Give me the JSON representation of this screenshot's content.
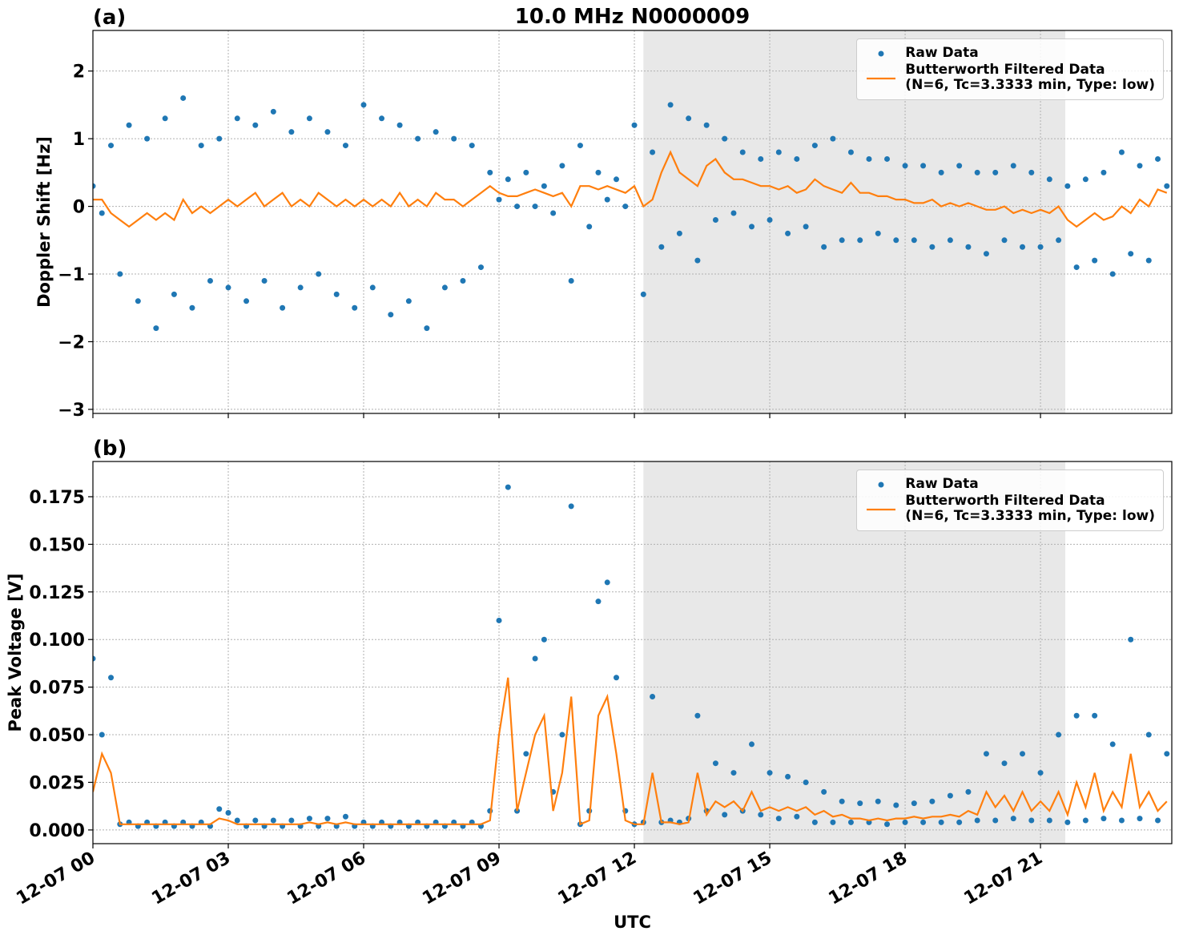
{
  "chart_data": [
    {
      "type": "scatter-line",
      "title": "10.0 MHz N0000009",
      "panel_label": "(a)",
      "y_label": "Doppler Shift [Hz]",
      "xlim": [
        0,
        23.91
      ],
      "xticks": [
        0,
        3,
        6,
        9,
        12,
        15,
        18,
        21
      ],
      "ylim": [
        -3.06,
        2.6
      ],
      "yticks": [
        {
          "value": -3,
          "label": "−3"
        },
        {
          "value": -2,
          "label": "−2"
        },
        {
          "value": -1,
          "label": "−1"
        },
        0,
        1,
        2
      ],
      "grid": true,
      "legend": "upper right",
      "shaded_span": [
        12.2,
        21.55
      ],
      "shade_color": "#e8e8e8",
      "x": [
        0,
        0.2,
        0.4,
        0.6,
        0.8,
        1,
        1.2,
        1.4,
        1.6,
        1.8,
        2,
        2.2,
        2.4,
        2.6,
        2.8,
        3,
        3.2,
        3.4,
        3.6,
        3.8,
        4,
        4.2,
        4.4,
        4.6,
        4.8,
        5,
        5.2,
        5.4,
        5.6,
        5.8,
        6,
        6.2,
        6.4,
        6.6,
        6.8,
        7,
        7.2,
        7.4,
        7.6,
        7.8,
        8,
        8.2,
        8.4,
        8.6,
        8.8,
        9,
        9.2,
        9.4,
        9.6,
        9.8,
        10,
        10.2,
        10.4,
        10.6,
        10.8,
        11,
        11.2,
        11.4,
        11.6,
        11.8,
        12,
        12.2,
        12.4,
        12.6,
        12.8,
        13,
        13.2,
        13.4,
        13.6,
        13.8,
        14,
        14.2,
        14.4,
        14.6,
        14.8,
        15,
        15.2,
        15.4,
        15.6,
        15.8,
        16,
        16.2,
        16.4,
        16.6,
        16.8,
        17,
        17.2,
        17.4,
        17.6,
        17.8,
        18,
        18.2,
        18.4,
        18.6,
        18.8,
        19,
        19.2,
        19.4,
        19.6,
        19.8,
        20,
        20.2,
        20.4,
        20.6,
        20.8,
        21,
        21.2,
        21.4,
        21.6,
        21.8,
        22,
        22.2,
        22.4,
        22.6,
        22.8,
        23,
        23.2,
        23.4,
        23.6,
        23.8
      ],
      "series": [
        {
          "name": "Raw Data",
          "color": "#1f77b4",
          "style": "points",
          "values": [
            0.3,
            -0.1,
            0.9,
            -1.0,
            1.2,
            -1.4,
            1.0,
            -1.8,
            1.3,
            -1.3,
            1.6,
            -1.5,
            0.9,
            -1.1,
            1.0,
            -1.2,
            1.3,
            -1.4,
            1.2,
            -1.1,
            1.4,
            -1.5,
            1.1,
            -1.2,
            1.3,
            -1.0,
            1.1,
            -1.3,
            0.9,
            -1.5,
            1.5,
            -1.2,
            1.3,
            -1.6,
            1.2,
            -1.4,
            1.0,
            -1.8,
            1.1,
            -1.2,
            1.0,
            -1.1,
            0.9,
            -0.9,
            0.5,
            0.1,
            0.4,
            0.0,
            0.5,
            0.0,
            0.3,
            -0.1,
            0.6,
            -1.1,
            0.9,
            -0.3,
            0.5,
            0.1,
            0.4,
            0.0,
            1.2,
            -1.3,
            0.8,
            -0.6,
            1.5,
            -0.4,
            1.3,
            -0.8,
            1.2,
            -0.2,
            1.0,
            -0.1,
            0.8,
            -0.3,
            0.7,
            -0.2,
            0.8,
            -0.4,
            0.7,
            -0.3,
            0.9,
            -0.6,
            1.0,
            -0.5,
            0.8,
            -0.5,
            0.7,
            -0.4,
            0.7,
            -0.5,
            0.6,
            -0.5,
            0.6,
            -0.6,
            0.5,
            -0.5,
            0.6,
            -0.6,
            0.5,
            -0.7,
            0.5,
            -0.5,
            0.6,
            -0.6,
            0.5,
            -0.6,
            0.4,
            -0.5,
            0.3,
            -0.9,
            0.4,
            -0.8,
            0.5,
            -1.0,
            0.8,
            -0.7,
            0.6,
            -0.8,
            0.7,
            0.3
          ]
        },
        {
          "name": "Butterworth Filtered Data\n(N=6, Tc=3.3333 min, Type: low)",
          "color": "#ff7f0e",
          "style": "line",
          "values": [
            0.1,
            0.1,
            -0.1,
            -0.2,
            -0.3,
            -0.2,
            -0.1,
            -0.2,
            -0.1,
            -0.2,
            0.1,
            -0.1,
            0.0,
            -0.1,
            0.0,
            0.1,
            0.0,
            0.1,
            0.2,
            0.0,
            0.1,
            0.2,
            0.0,
            0.1,
            0.0,
            0.2,
            0.1,
            0.0,
            0.1,
            0.0,
            0.1,
            0.0,
            0.1,
            0.0,
            0.2,
            0.0,
            0.1,
            0.0,
            0.2,
            0.1,
            0.1,
            0.0,
            0.1,
            0.2,
            0.3,
            0.2,
            0.15,
            0.15,
            0.2,
            0.25,
            0.2,
            0.15,
            0.2,
            0.0,
            0.3,
            0.3,
            0.25,
            0.3,
            0.25,
            0.2,
            0.3,
            0.0,
            0.1,
            0.5,
            0.8,
            0.5,
            0.4,
            0.3,
            0.6,
            0.7,
            0.5,
            0.4,
            0.4,
            0.35,
            0.3,
            0.3,
            0.25,
            0.3,
            0.2,
            0.25,
            0.4,
            0.3,
            0.25,
            0.2,
            0.35,
            0.2,
            0.2,
            0.15,
            0.15,
            0.1,
            0.1,
            0.05,
            0.05,
            0.1,
            0.0,
            0.05,
            0.0,
            0.05,
            0.0,
            -0.05,
            -0.05,
            0.0,
            -0.1,
            -0.05,
            -0.1,
            -0.05,
            -0.1,
            0.0,
            -0.2,
            -0.3,
            -0.2,
            -0.1,
            -0.2,
            -0.15,
            0.0,
            -0.1,
            0.1,
            0.0,
            0.25,
            0.2
          ]
        }
      ]
    },
    {
      "type": "scatter-line",
      "panel_label": "(b)",
      "y_label": "Peak Voltage [V]",
      "x_label": "UTC",
      "xlim": [
        0,
        23.91
      ],
      "xticks": [
        {
          "value": 0,
          "label": "12-07 00"
        },
        {
          "value": 3,
          "label": "12-07 03"
        },
        {
          "value": 6,
          "label": "12-07 06"
        },
        {
          "value": 9,
          "label": "12-07 09"
        },
        {
          "value": 12,
          "label": "12-07 12"
        },
        {
          "value": 15,
          "label": "12-07 15"
        },
        {
          "value": 18,
          "label": "12-07 18"
        },
        {
          "value": 21,
          "label": "12-07 21"
        }
      ],
      "ylim": [
        -0.0072,
        0.1935
      ],
      "yticks": [
        {
          "value": 0,
          "label": "0.000"
        },
        {
          "value": 0.025,
          "label": "0.025"
        },
        {
          "value": 0.05,
          "label": "0.050"
        },
        {
          "value": 0.075,
          "label": "0.075"
        },
        {
          "value": 0.1,
          "label": "0.100"
        },
        {
          "value": 0.125,
          "label": "0.125"
        },
        {
          "value": 0.15,
          "label": "0.150"
        },
        {
          "value": 0.175,
          "label": "0.175"
        }
      ],
      "grid": true,
      "legend": "upper right",
      "shaded_span": [
        12.2,
        21.55
      ],
      "shade_color": "#e8e8e8",
      "x": [
        0,
        0.2,
        0.4,
        0.6,
        0.8,
        1,
        1.2,
        1.4,
        1.6,
        1.8,
        2,
        2.2,
        2.4,
        2.6,
        2.8,
        3,
        3.2,
        3.4,
        3.6,
        3.8,
        4,
        4.2,
        4.4,
        4.6,
        4.8,
        5,
        5.2,
        5.4,
        5.6,
        5.8,
        6,
        6.2,
        6.4,
        6.6,
        6.8,
        7,
        7.2,
        7.4,
        7.6,
        7.8,
        8,
        8.2,
        8.4,
        8.6,
        8.8,
        9,
        9.2,
        9.4,
        9.6,
        9.8,
        10,
        10.2,
        10.4,
        10.6,
        10.8,
        11,
        11.2,
        11.4,
        11.6,
        11.8,
        12,
        12.2,
        12.4,
        12.6,
        12.8,
        13,
        13.2,
        13.4,
        13.6,
        13.8,
        14,
        14.2,
        14.4,
        14.6,
        14.8,
        15,
        15.2,
        15.4,
        15.6,
        15.8,
        16,
        16.2,
        16.4,
        16.6,
        16.8,
        17,
        17.2,
        17.4,
        17.6,
        17.8,
        18,
        18.2,
        18.4,
        18.6,
        18.8,
        19,
        19.2,
        19.4,
        19.6,
        19.8,
        20,
        20.2,
        20.4,
        20.6,
        20.8,
        21,
        21.2,
        21.4,
        21.6,
        21.8,
        22,
        22.2,
        22.4,
        22.6,
        22.8,
        23,
        23.2,
        23.4,
        23.6,
        23.8
      ],
      "series": [
        {
          "name": "Raw Data",
          "color": "#1f77b4",
          "style": "points",
          "values": [
            0.09,
            0.05,
            0.08,
            0.003,
            0.004,
            0.002,
            0.004,
            0.002,
            0.004,
            0.002,
            0.004,
            0.002,
            0.004,
            0.002,
            0.011,
            0.009,
            0.005,
            0.002,
            0.005,
            0.002,
            0.005,
            0.002,
            0.005,
            0.002,
            0.006,
            0.002,
            0.006,
            0.002,
            0.007,
            0.002,
            0.004,
            0.002,
            0.004,
            0.002,
            0.004,
            0.002,
            0.004,
            0.002,
            0.004,
            0.002,
            0.004,
            0.002,
            0.004,
            0.002,
            0.01,
            0.11,
            0.18,
            0.01,
            0.04,
            0.09,
            0.1,
            0.02,
            0.05,
            0.17,
            0.003,
            0.01,
            0.12,
            0.13,
            0.08,
            0.01,
            0.003,
            0.004,
            0.07,
            0.004,
            0.005,
            0.004,
            0.006,
            0.06,
            0.01,
            0.035,
            0.008,
            0.03,
            0.01,
            0.045,
            0.008,
            0.03,
            0.006,
            0.028,
            0.007,
            0.025,
            0.004,
            0.02,
            0.004,
            0.015,
            0.004,
            0.014,
            0.004,
            0.015,
            0.003,
            0.013,
            0.004,
            0.014,
            0.004,
            0.015,
            0.004,
            0.018,
            0.004,
            0.02,
            0.005,
            0.04,
            0.005,
            0.035,
            0.006,
            0.04,
            0.005,
            0.03,
            0.005,
            0.05,
            0.004,
            0.06,
            0.005,
            0.06,
            0.006,
            0.045,
            0.005,
            0.1,
            0.006,
            0.05,
            0.005,
            0.04
          ]
        },
        {
          "name": "Butterworth Filtered Data\n(N=6, Tc=3.3333 min, Type: low)",
          "color": "#ff7f0e",
          "style": "line",
          "values": [
            0.02,
            0.04,
            0.03,
            0.003,
            0.003,
            0.003,
            0.003,
            0.003,
            0.003,
            0.003,
            0.003,
            0.003,
            0.003,
            0.003,
            0.006,
            0.005,
            0.003,
            0.003,
            0.003,
            0.003,
            0.003,
            0.003,
            0.003,
            0.003,
            0.004,
            0.003,
            0.004,
            0.003,
            0.004,
            0.003,
            0.003,
            0.003,
            0.003,
            0.003,
            0.003,
            0.003,
            0.003,
            0.003,
            0.003,
            0.003,
            0.003,
            0.003,
            0.003,
            0.003,
            0.005,
            0.05,
            0.08,
            0.01,
            0.03,
            0.05,
            0.06,
            0.01,
            0.03,
            0.07,
            0.003,
            0.005,
            0.06,
            0.07,
            0.04,
            0.005,
            0.003,
            0.003,
            0.03,
            0.004,
            0.004,
            0.003,
            0.004,
            0.03,
            0.008,
            0.015,
            0.012,
            0.015,
            0.01,
            0.02,
            0.01,
            0.012,
            0.01,
            0.012,
            0.01,
            0.012,
            0.008,
            0.01,
            0.007,
            0.008,
            0.006,
            0.006,
            0.005,
            0.006,
            0.005,
            0.006,
            0.006,
            0.007,
            0.006,
            0.007,
            0.007,
            0.008,
            0.007,
            0.01,
            0.008,
            0.02,
            0.012,
            0.018,
            0.01,
            0.02,
            0.01,
            0.015,
            0.01,
            0.02,
            0.008,
            0.025,
            0.012,
            0.03,
            0.01,
            0.02,
            0.012,
            0.04,
            0.012,
            0.02,
            0.01,
            0.015
          ]
        }
      ]
    }
  ]
}
